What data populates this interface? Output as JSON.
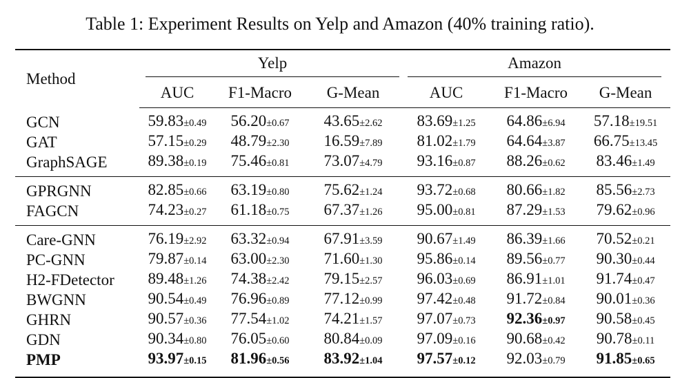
{
  "caption": "Table 1: Experiment Results on Yelp and Amazon (40% training ratio).",
  "header": {
    "method": "Method",
    "groups": [
      "Yelp",
      "Amazon"
    ],
    "metrics": [
      "AUC",
      "F1-Macro",
      "G-Mean",
      "AUC",
      "F1-Macro",
      "G-Mean"
    ]
  },
  "groups": [
    [
      {
        "method": "GCN",
        "cells": [
          {
            "v": "59.83",
            "s": "±0.49"
          },
          {
            "v": "56.20",
            "s": "±0.67"
          },
          {
            "v": "43.65",
            "s": "±2.62"
          },
          {
            "v": "83.69",
            "s": "±1.25"
          },
          {
            "v": "64.86",
            "s": "±6.94"
          },
          {
            "v": "57.18",
            "s": "±19.51"
          }
        ]
      },
      {
        "method": "GAT",
        "cells": [
          {
            "v": "57.15",
            "s": "±0.29"
          },
          {
            "v": "48.79",
            "s": "±2.30"
          },
          {
            "v": "16.59",
            "s": "±7.89"
          },
          {
            "v": "81.02",
            "s": "±1.79"
          },
          {
            "v": "64.64",
            "s": "±3.87"
          },
          {
            "v": "66.75",
            "s": "±13.45"
          }
        ]
      },
      {
        "method": "GraphSAGE",
        "cells": [
          {
            "v": "89.38",
            "s": "±0.19"
          },
          {
            "v": "75.46",
            "s": "±0.81"
          },
          {
            "v": "73.07",
            "s": "±4.79"
          },
          {
            "v": "93.16",
            "s": "±0.87"
          },
          {
            "v": "88.26",
            "s": "±0.62"
          },
          {
            "v": "83.46",
            "s": "±1.49"
          }
        ]
      }
    ],
    [
      {
        "method": "GPRGNN",
        "cells": [
          {
            "v": "82.85",
            "s": "±0.66"
          },
          {
            "v": "63.19",
            "s": "±0.80"
          },
          {
            "v": "75.62",
            "s": "±1.24"
          },
          {
            "v": "93.72",
            "s": "±0.68"
          },
          {
            "v": "80.66",
            "s": "±1.82"
          },
          {
            "v": "85.56",
            "s": "±2.73"
          }
        ]
      },
      {
        "method": "FAGCN",
        "cells": [
          {
            "v": "74.23",
            "s": "±0.27"
          },
          {
            "v": "61.18",
            "s": "±0.75"
          },
          {
            "v": "67.37",
            "s": "±1.26"
          },
          {
            "v": "95.00",
            "s": "±0.81"
          },
          {
            "v": "87.29",
            "s": "±1.53"
          },
          {
            "v": "79.62",
            "s": "±0.96"
          }
        ]
      }
    ],
    [
      {
        "method": "Care-GNN",
        "cells": [
          {
            "v": "76.19",
            "s": "±2.92"
          },
          {
            "v": "63.32",
            "s": "±0.94"
          },
          {
            "v": "67.91",
            "s": "±3.59"
          },
          {
            "v": "90.67",
            "s": "±1.49"
          },
          {
            "v": "86.39",
            "s": "±1.66"
          },
          {
            "v": "70.52",
            "s": "±0.21"
          }
        ]
      },
      {
        "method": "PC-GNN",
        "cells": [
          {
            "v": "79.87",
            "s": "±0.14"
          },
          {
            "v": "63.00",
            "s": "±2.30"
          },
          {
            "v": "71.60",
            "s": "±1.30"
          },
          {
            "v": "95.86",
            "s": "±0.14"
          },
          {
            "v": "89.56",
            "s": "±0.77"
          },
          {
            "v": "90.30",
            "s": "±0.44"
          }
        ]
      },
      {
        "method": "H2-FDetector",
        "cells": [
          {
            "v": "89.48",
            "s": "±1.26"
          },
          {
            "v": "74.38",
            "s": "±2.42"
          },
          {
            "v": "79.15",
            "s": "±2.57"
          },
          {
            "v": "96.03",
            "s": "±0.69"
          },
          {
            "v": "86.91",
            "s": "±1.01"
          },
          {
            "v": "91.74",
            "s": "±0.47"
          }
        ]
      },
      {
        "method": "BWGNN",
        "cells": [
          {
            "v": "90.54",
            "s": "±0.49"
          },
          {
            "v": "76.96",
            "s": "±0.89"
          },
          {
            "v": "77.12",
            "s": "±0.99"
          },
          {
            "v": "97.42",
            "s": "±0.48"
          },
          {
            "v": "91.72",
            "s": "±0.84"
          },
          {
            "v": "90.01",
            "s": "±0.36"
          }
        ]
      },
      {
        "method": "GHRN",
        "cells": [
          {
            "v": "90.57",
            "s": "±0.36"
          },
          {
            "v": "77.54",
            "s": "±1.02"
          },
          {
            "v": "74.21",
            "s": "±1.57"
          },
          {
            "v": "97.07",
            "s": "±0.73"
          },
          {
            "v": "92.36",
            "s": "±0.97",
            "bold": true
          },
          {
            "v": "90.58",
            "s": "±0.45"
          }
        ]
      },
      {
        "method": "GDN",
        "cells": [
          {
            "v": "90.34",
            "s": "±0.80"
          },
          {
            "v": "76.05",
            "s": "±0.60"
          },
          {
            "v": "80.84",
            "s": "±0.09"
          },
          {
            "v": "97.09",
            "s": "±0.16"
          },
          {
            "v": "90.68",
            "s": "±0.42"
          },
          {
            "v": "90.78",
            "s": "±0.11"
          }
        ]
      },
      {
        "method": "PMP",
        "bold": true,
        "cells": [
          {
            "v": "93.97",
            "s": "±0.15",
            "bold": true
          },
          {
            "v": "81.96",
            "s": "±0.56",
            "bold": true
          },
          {
            "v": "83.92",
            "s": "±1.04",
            "bold": true
          },
          {
            "v": "97.57",
            "s": "±0.12",
            "bold": true
          },
          {
            "v": "92.03",
            "s": "±0.79"
          },
          {
            "v": "91.85",
            "s": "±0.65",
            "bold": true
          }
        ]
      }
    ]
  ]
}
